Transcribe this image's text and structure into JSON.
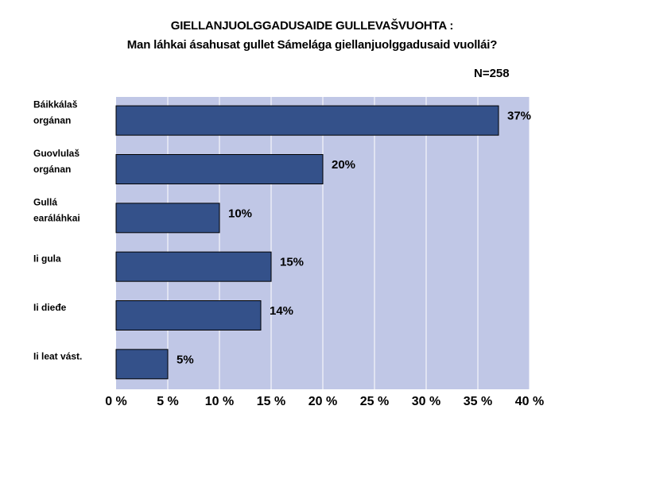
{
  "chart_data": {
    "type": "bar",
    "orientation": "horizontal",
    "title": "GIELLANJUOLGGADUSAIDE GULLEVAŠVUOHTA :",
    "subtitle": "Man láhkai ásahusat gullet Sámelága giellanjuolggadusaid vuollái?",
    "note": "N=258",
    "categories": [
      [
        "Báikkálaš",
        "orgánan"
      ],
      [
        "Guovlulaš",
        "orgánan"
      ],
      [
        "Gullá",
        "earáláhkai"
      ],
      [
        "Ii gula"
      ],
      [
        "Ii dieđe"
      ],
      [
        "Ii leat vást."
      ]
    ],
    "values": [
      37,
      20,
      10,
      15,
      14,
      5
    ],
    "value_labels": [
      "37%",
      "20%",
      "10%",
      "15%",
      "14%",
      "5%"
    ],
    "xlim": [
      0,
      40
    ],
    "xticks": [
      0,
      5,
      10,
      15,
      20,
      25,
      30,
      35,
      40
    ],
    "xtick_labels": [
      "0 %",
      "5 %",
      "10 %",
      "15 %",
      "20 %",
      "25 %",
      "30 %",
      "35 %",
      "40 %"
    ],
    "grid": true,
    "colors": {
      "plot_background": "#c0c7e6",
      "bar": "#34518a",
      "gridline": "#ffffff"
    }
  }
}
